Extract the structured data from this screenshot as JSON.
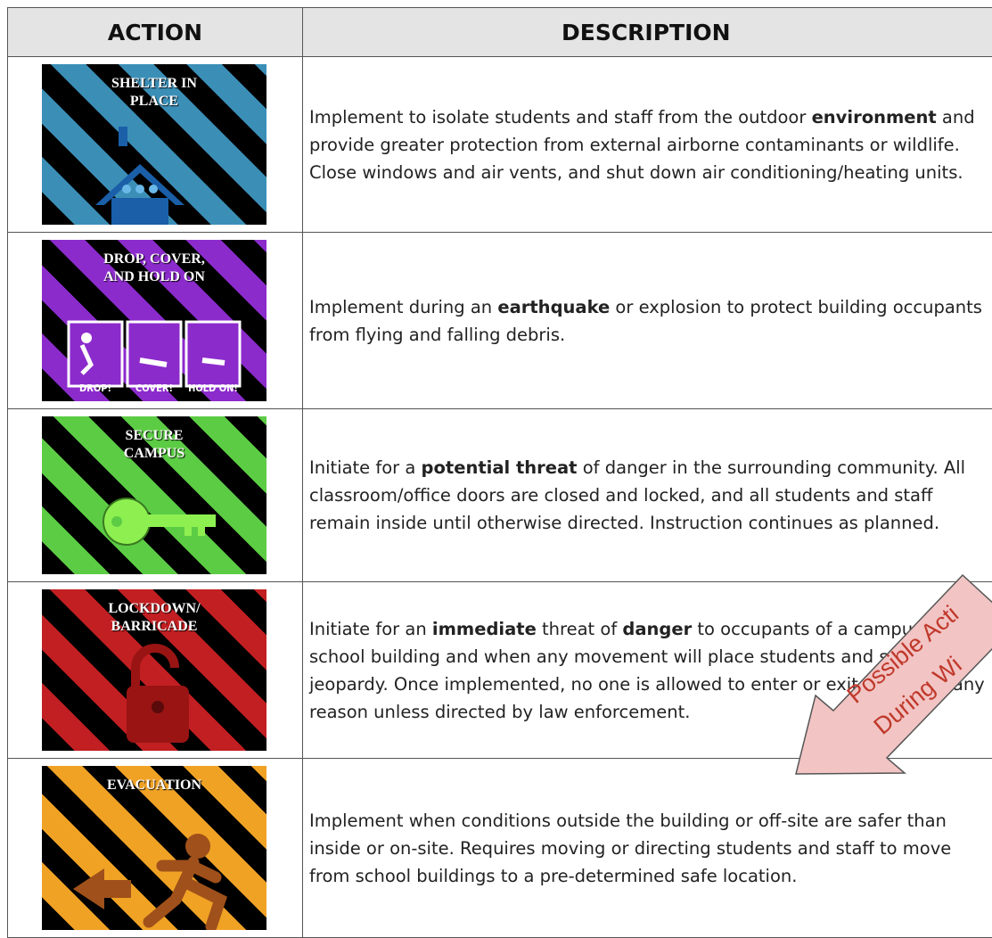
{
  "header": {
    "action": "ACTION",
    "description": "DESCRIPTION"
  },
  "rows": [
    {
      "tile": {
        "label": [
          "SHELTER IN",
          "PLACE"
        ]
      },
      "description": [
        {
          "text": "Implement to isolate students and staff from the outdoor "
        },
        {
          "text": "environment",
          "bold": true
        },
        {
          "text": " and provide greater protection from external airborne contaminants or wildlife. Close windows and air vents, and shut down air conditioning/heating units."
        }
      ]
    },
    {
      "tile": {
        "label": [
          "DROP, COVER,",
          "AND HOLD ON"
        ],
        "panels": [
          "DROP!",
          "COVER!",
          "HOLD ON!"
        ]
      },
      "description": [
        {
          "text": "Implement during an "
        },
        {
          "text": "earthquake",
          "bold": true
        },
        {
          "text": " or explosion to protect building occupants from flying and falling debris."
        }
      ]
    },
    {
      "tile": {
        "label": [
          "SECURE",
          "CAMPUS"
        ]
      },
      "description": [
        {
          "text": "Initiate for a "
        },
        {
          "text": "potential threat",
          "bold": true
        },
        {
          "text": " of danger in the surrounding community. All classroom/office doors are closed and locked, and all students and staff remain inside until otherwise directed. Instruction continues as planned."
        }
      ]
    },
    {
      "tile": {
        "label": [
          "LOCKDOWN/",
          "BARRICADE"
        ]
      },
      "description": [
        {
          "text": "Initiate for an "
        },
        {
          "text": "immediate",
          "bold": true
        },
        {
          "text": " threat of "
        },
        {
          "text": "danger",
          "bold": true
        },
        {
          "text": " to occupants of a campus or school building and when any movement will place students and staff in jeopardy. Once implemented, no one is allowed to enter or exit rooms for any reason unless directed by law enforcement."
        }
      ]
    },
    {
      "tile": {
        "label": [
          "EVACUATION"
        ]
      },
      "description": [
        {
          "text": "Implement when conditions outside the building or off-site are safer than inside or on-site. Requires moving or directing students and staff to move from school buildings to a pre-determined safe location."
        }
      ]
    }
  ],
  "overlay": {
    "lines": [
      "Possible Acti",
      "During Wi"
    ]
  }
}
